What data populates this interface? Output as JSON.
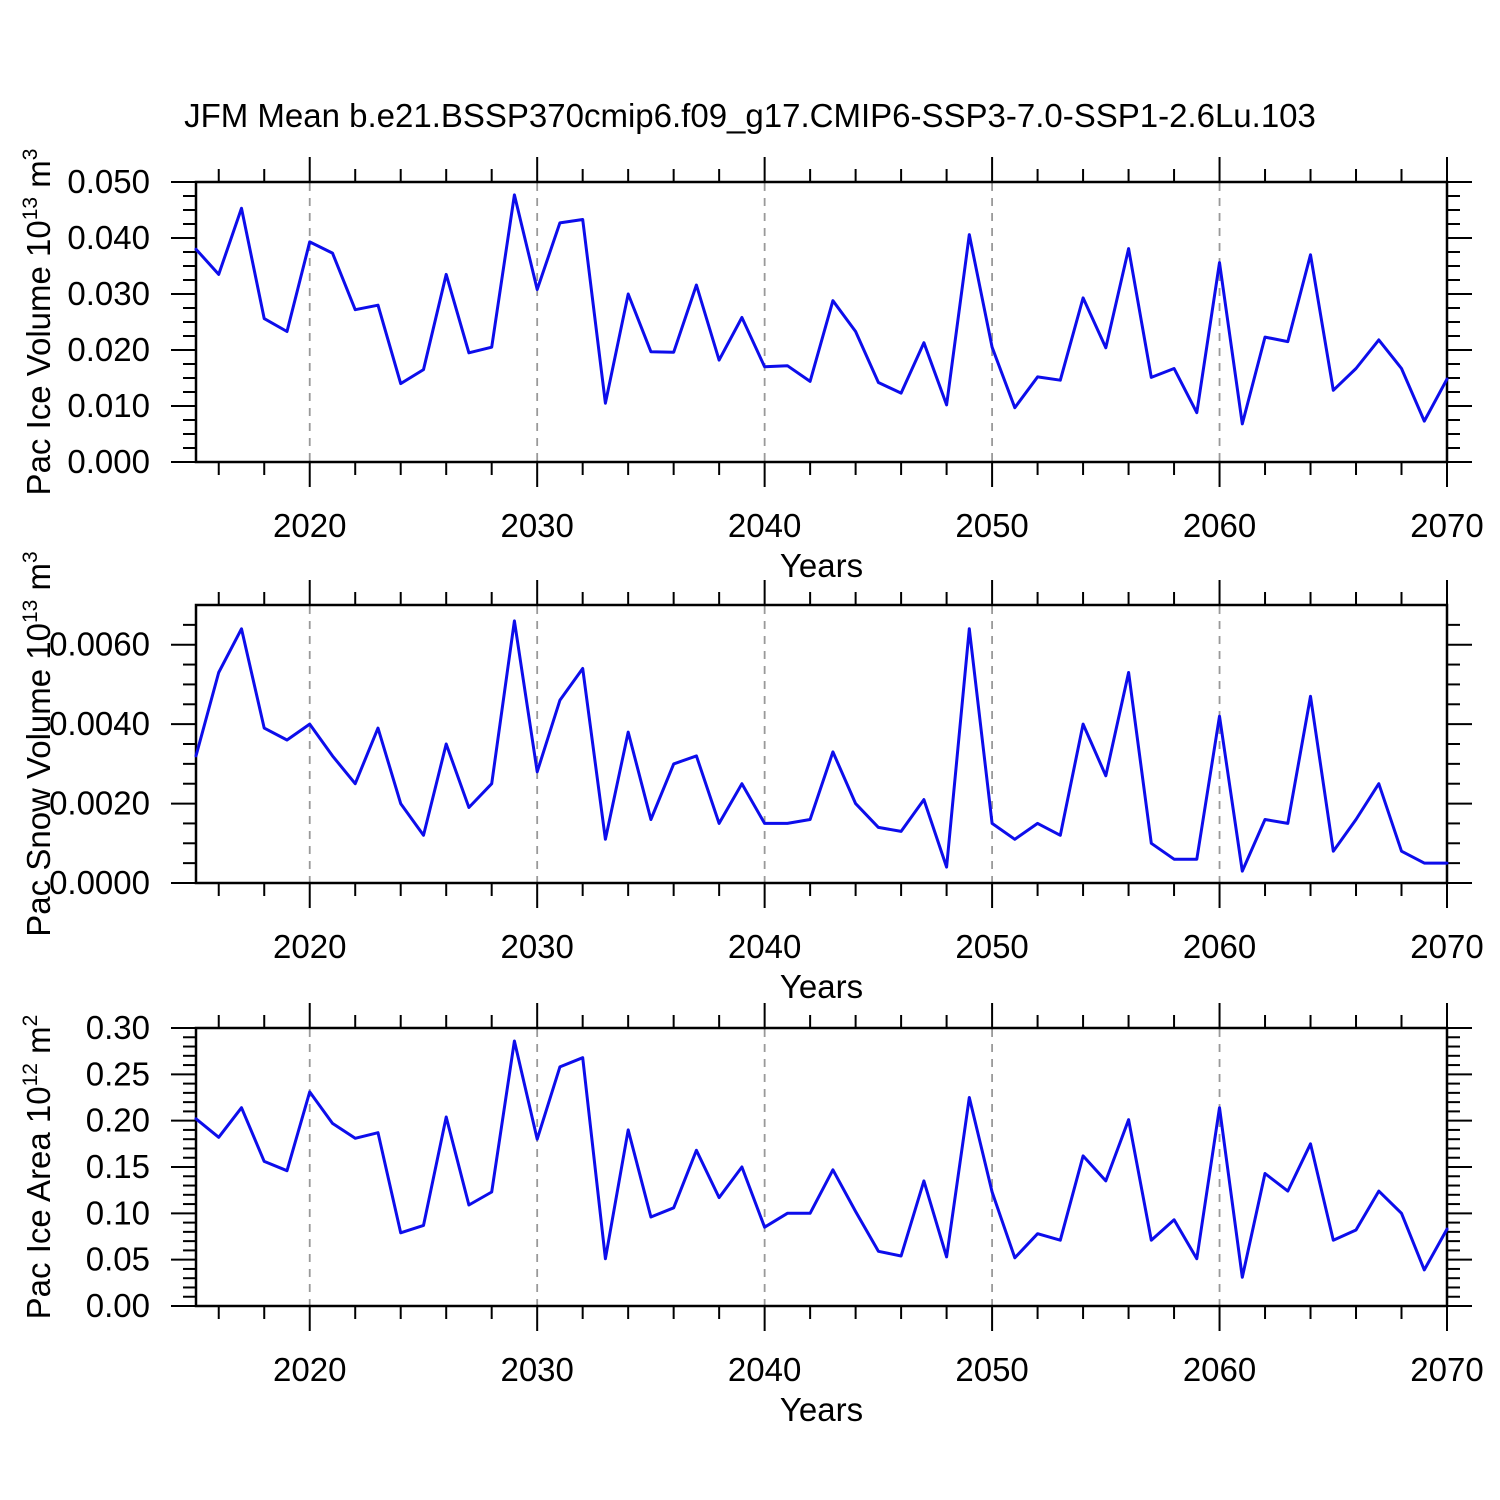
{
  "chart_data": {
    "type": "line",
    "figure_title": "JFM Mean b.e21.BSSP370cmip6.f09_g17.CMIP6-SSP3-7.0-SSP1-2.6Lu.103",
    "x_label": "Years",
    "x_range": [
      2015,
      2070
    ],
    "x_step": 1,
    "x_major_ticks": [
      2020,
      2030,
      2040,
      2050,
      2060,
      2070
    ],
    "x_minor_step": 2,
    "x_gridlines": [
      2020,
      2030,
      2040,
      2050,
      2060
    ],
    "grid_style": "vertical dashed gray lines at decades",
    "legend": "none",
    "line_color": "#0d0deb",
    "x": [
      2015,
      2016,
      2017,
      2018,
      2019,
      2020,
      2021,
      2022,
      2023,
      2024,
      2025,
      2026,
      2027,
      2028,
      2029,
      2030,
      2031,
      2032,
      2033,
      2034,
      2035,
      2036,
      2037,
      2038,
      2039,
      2040,
      2041,
      2042,
      2043,
      2044,
      2045,
      2046,
      2047,
      2048,
      2049,
      2050,
      2051,
      2052,
      2053,
      2054,
      2055,
      2056,
      2057,
      2058,
      2059,
      2060,
      2061,
      2062,
      2063,
      2064,
      2065,
      2066,
      2067,
      2068,
      2069,
      2070
    ],
    "panels": [
      {
        "id": "ice-volume",
        "ylabel": "Pac Ice Volume 10^13 m^3",
        "ylabel_parts": {
          "base": "Pac Ice Volume 10",
          "exp": "13",
          "unit": "m",
          "unit_exp": "3"
        },
        "ylim": [
          0,
          0.05
        ],
        "y_major_step": 0.01,
        "y_minor_step": 0.0025,
        "y_tick_labels": [
          "0.000",
          "0.010",
          "0.020",
          "0.030",
          "0.040",
          "0.050"
        ],
        "values": [
          0.038,
          0.0335,
          0.0453,
          0.0256,
          0.0233,
          0.0393,
          0.0373,
          0.0272,
          0.028,
          0.014,
          0.0165,
          0.0335,
          0.0195,
          0.0205,
          0.0477,
          0.0308,
          0.0427,
          0.0433,
          0.0105,
          0.03,
          0.0197,
          0.0196,
          0.0316,
          0.0182,
          0.0258,
          0.017,
          0.0172,
          0.0144,
          0.0288,
          0.0233,
          0.0142,
          0.0123,
          0.0213,
          0.0102,
          0.0406,
          0.0205,
          0.0097,
          0.0152,
          0.0146,
          0.0293,
          0.0204,
          0.0381,
          0.0151,
          0.0167,
          0.0088,
          0.0356,
          0.0068,
          0.0223,
          0.0215,
          0.037,
          0.0128,
          0.0167,
          0.0218,
          0.0167,
          0.0073,
          0.0148
        ]
      },
      {
        "id": "snow-volume",
        "ylabel": "Pac Snow Volume 10^13 m^3",
        "ylabel_parts": {
          "base": "Pac Snow Volume 10",
          "exp": "13",
          "unit": "m",
          "unit_exp": "3"
        },
        "ylim": [
          0,
          0.007
        ],
        "y_major_step": 0.002,
        "y_minor_step": 0.0005,
        "y_tick_labels": [
          "0.0000",
          "0.0020",
          "0.0040",
          "0.0060"
        ],
        "values": [
          0.0032,
          0.0053,
          0.0064,
          0.0039,
          0.0036,
          0.004,
          0.0032,
          0.0025,
          0.0039,
          0.002,
          0.0012,
          0.0035,
          0.0019,
          0.0025,
          0.0066,
          0.0028,
          0.0046,
          0.0054,
          0.0011,
          0.0038,
          0.0016,
          0.003,
          0.0032,
          0.0015,
          0.0025,
          0.0015,
          0.0015,
          0.0016,
          0.0033,
          0.002,
          0.0014,
          0.0013,
          0.0021,
          0.0004,
          0.0064,
          0.0015,
          0.0011,
          0.0015,
          0.0012,
          0.004,
          0.0027,
          0.0053,
          0.001,
          0.0006,
          0.0006,
          0.0042,
          0.0003,
          0.0016,
          0.0015,
          0.0047,
          0.0008,
          0.0016,
          0.0025,
          0.0008,
          0.0005,
          0.0005
        ]
      },
      {
        "id": "ice-area",
        "ylabel": "Pac Ice Area 10^12 m^2",
        "ylabel_parts": {
          "base": "Pac Ice Area 10",
          "exp": "12",
          "unit": "m",
          "unit_exp": "2"
        },
        "ylim": [
          0,
          0.3
        ],
        "y_major_step": 0.05,
        "y_minor_step": 0.01,
        "y_tick_labels": [
          "0.00",
          "0.05",
          "0.10",
          "0.15",
          "0.20",
          "0.25",
          "0.30"
        ],
        "values": [
          0.202,
          0.182,
          0.214,
          0.156,
          0.146,
          0.231,
          0.197,
          0.181,
          0.187,
          0.079,
          0.087,
          0.204,
          0.109,
          0.123,
          0.286,
          0.18,
          0.258,
          0.268,
          0.051,
          0.19,
          0.096,
          0.106,
          0.168,
          0.117,
          0.15,
          0.085,
          0.1,
          0.1,
          0.147,
          0.102,
          0.059,
          0.054,
          0.135,
          0.053,
          0.225,
          0.123,
          0.052,
          0.078,
          0.071,
          0.162,
          0.135,
          0.201,
          0.071,
          0.093,
          0.051,
          0.214,
          0.031,
          0.143,
          0.124,
          0.175,
          0.071,
          0.082,
          0.124,
          0.1,
          0.039,
          0.083
        ]
      }
    ]
  }
}
